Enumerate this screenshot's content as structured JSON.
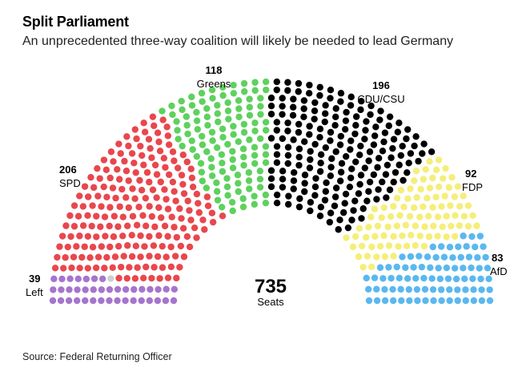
{
  "header": {
    "title": "Split Parliament",
    "subtitle": "An unprecedented three-way coalition will likely be needed to lead Germany"
  },
  "footer": {
    "source": "Source: Federal Returning Officer"
  },
  "chart_data": {
    "type": "parliament",
    "total": {
      "value": "735",
      "label": "Seats"
    },
    "parties": [
      {
        "name": "Left",
        "seats": 39,
        "color": "#a674cf"
      },
      {
        "name": "SPD",
        "seats": 206,
        "color": "#e8474d"
      },
      {
        "name": "Greens",
        "seats": 118,
        "color": "#5ed15e"
      },
      {
        "name": "CDU/CSU",
        "seats": 196,
        "color": "#000000"
      },
      {
        "name": "FDP",
        "seats": 92,
        "color": "#f5ee7a"
      },
      {
        "name": "AfD",
        "seats": 83,
        "color": "#5ab8ef"
      }
    ],
    "other": {
      "name": "",
      "seats": 1,
      "color": "#cfcfcf"
    }
  }
}
